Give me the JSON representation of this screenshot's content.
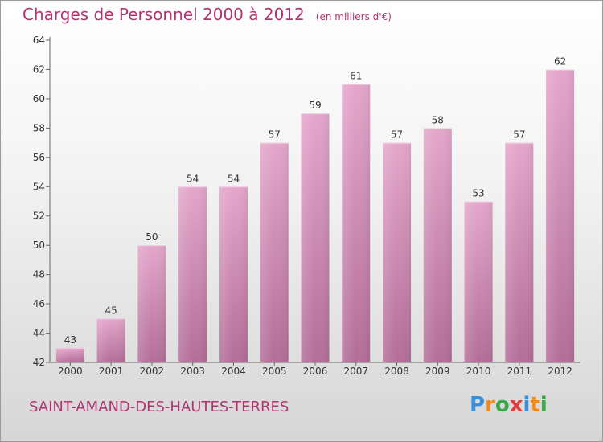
{
  "title": "Charges de Personnel 2000 à 2012",
  "unit_note": "(en milliers d'€)",
  "commune": "SAINT-AMAND-DES-HAUTES-TERRES",
  "logo": {
    "letters": [
      "P",
      "r",
      "o",
      "x",
      "i",
      "t",
      "i"
    ],
    "colors": [
      "#3a8fd8",
      "#f08a1c",
      "#3aa84a",
      "#e23a3a",
      "#3a8fd8",
      "#f08a1c",
      "#3aa84a"
    ]
  },
  "colors": {
    "bar_top": "#e4a6cb",
    "bar_bottom": "#b36e98",
    "accent": "#b03570"
  },
  "chart_data": {
    "type": "bar",
    "categories": [
      "2000",
      "2001",
      "2002",
      "2003",
      "2004",
      "2005",
      "2006",
      "2007",
      "2008",
      "2009",
      "2010",
      "2011",
      "2012"
    ],
    "values": [
      43,
      45,
      50,
      54,
      54,
      57,
      59,
      61,
      57,
      58,
      53,
      57,
      62
    ],
    "title": "Charges de Personnel 2000 à 2012",
    "xlabel": "",
    "ylabel": "",
    "ylim": [
      42,
      64
    ],
    "yticks": [
      42,
      44,
      46,
      48,
      50,
      52,
      54,
      56,
      58,
      60,
      62,
      64
    ],
    "grid": false,
    "legend": "none"
  }
}
